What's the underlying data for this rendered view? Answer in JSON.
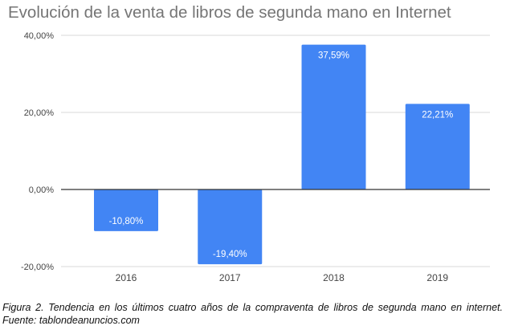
{
  "caption": "Figura 2. Tendencia en los últimos cuatro años de la compraventa de libros de segunda mano en internet. Fuente: tablondeanuncios.com",
  "colors": {
    "bar": "#4285f4",
    "grid": "#d9d9d9",
    "zero_line": "#333333"
  },
  "chart_data": {
    "type": "bar",
    "title": "Evolución de la venta de libros de segunda mano en Internet",
    "xlabel": "",
    "ylabel": "",
    "categories": [
      "2016",
      "2017",
      "2018",
      "2019"
    ],
    "values": [
      -10.8,
      -19.4,
      37.59,
      22.21
    ],
    "data_labels": [
      "-10,80%",
      "-19,40%",
      "37,59%",
      "22,21%"
    ],
    "ylim": [
      -20,
      40
    ],
    "yticks": [
      40,
      20,
      0,
      -20
    ],
    "ytick_labels": [
      "40,00%",
      "20,00%",
      "0,00%",
      "-20,00%"
    ],
    "grid": true,
    "legend": "none"
  }
}
